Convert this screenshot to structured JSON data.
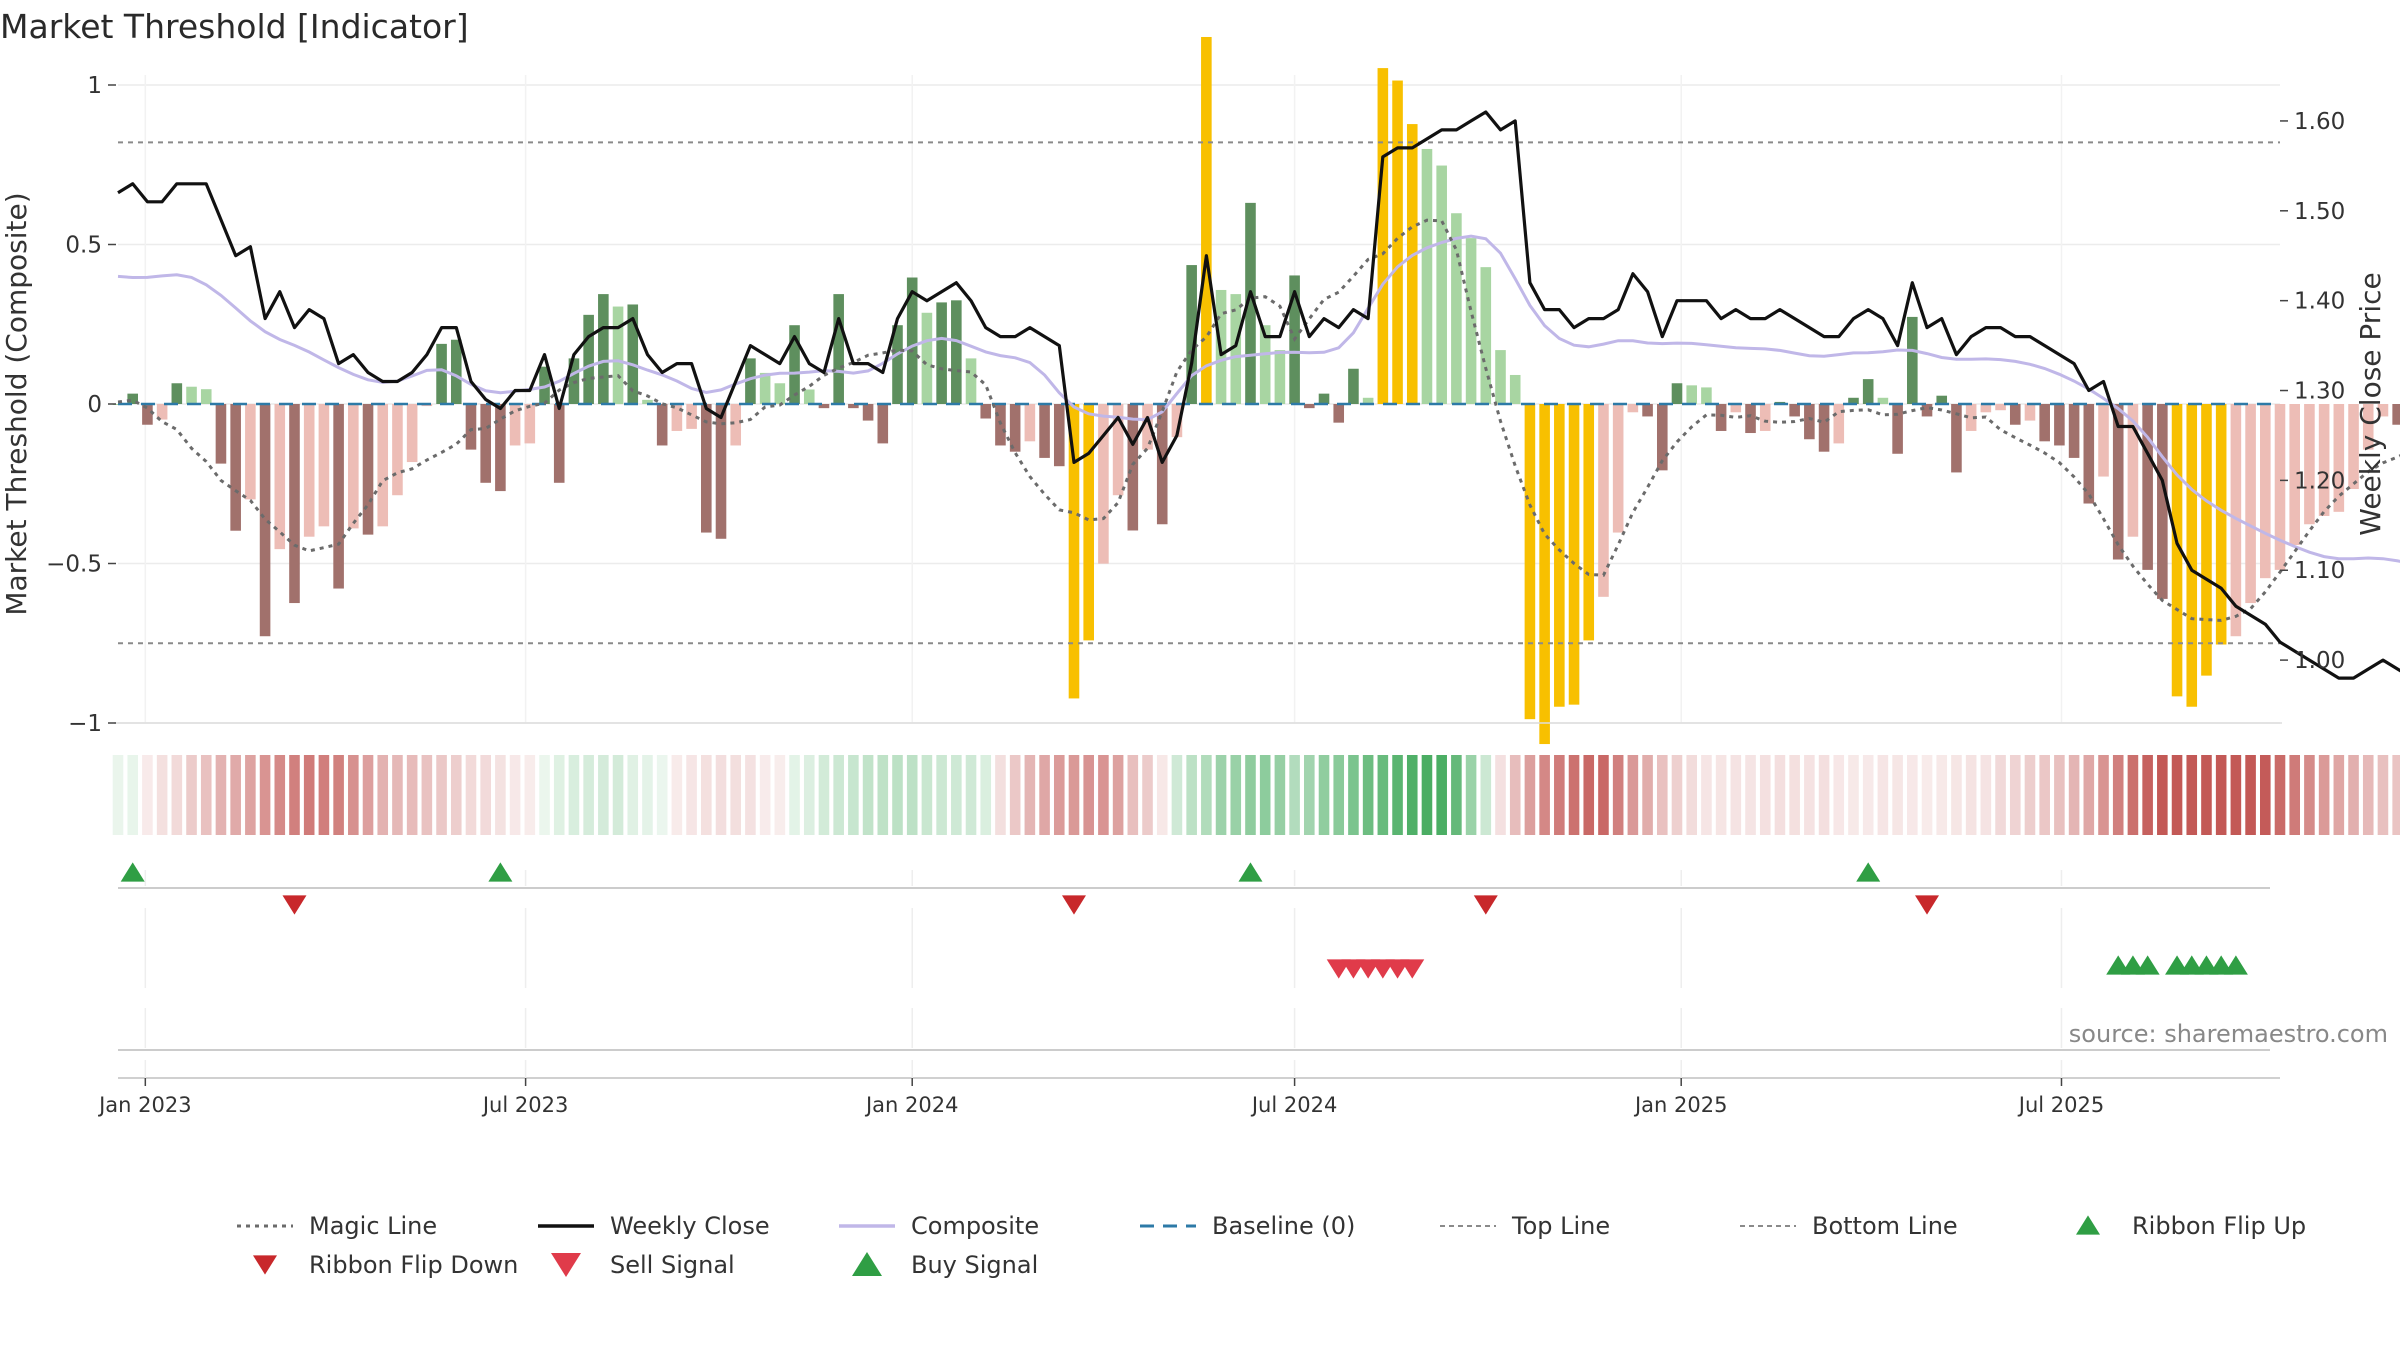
{
  "title": "Market Threshold [Indicator]",
  "source": "source: sharemaestro.com",
  "colors": {
    "bar_pos_strong": "#5e8f5e",
    "bar_pos_weak": "#a8d5a2",
    "bar_neg_strong": "#a1716c",
    "bar_neg_weak": "#edbdb6",
    "extreme": "#f8c000",
    "close": "#111111",
    "composite": "#c0b7e8",
    "magic": "#6b6b6b",
    "baseline": "#2d7aa7",
    "threshold": "#8a8a8a",
    "signal_up": "#2ca02c",
    "signal_down": "#d62728",
    "buy": "#2f9e44",
    "sell": "#e03b4a",
    "ribbon_flip_up": "#2f9e44",
    "ribbon_flip_down": "#c8282b"
  },
  "chart_data": {
    "type": "bar",
    "title": "Market Threshold [Indicator]",
    "x_range": [
      "2022-12-19",
      "2025-10-13"
    ],
    "x_ticks": [
      "Jan 2023",
      "Jul 2023",
      "Jan 2024",
      "Jul 2024",
      "Jan 2025",
      "Jul 2025"
    ],
    "left_axis": {
      "label": "Market Threshold (Composite)",
      "range": [
        -1,
        1
      ],
      "ticks": [
        {
          "v": 1,
          "label": "1"
        },
        {
          "v": 0.5,
          "label": "0.5"
        },
        {
          "v": 0,
          "label": "0"
        },
        {
          "v": -0.5,
          "label": "−0.5"
        },
        {
          "v": -1,
          "label": "−1"
        }
      ]
    },
    "right_axis": {
      "label": "Weekly Close Price",
      "range": [
        0.93,
        1.64
      ],
      "ticks": [
        1.6,
        1.5,
        1.4,
        1.3,
        1.2,
        1.1,
        1.0
      ]
    },
    "top_line": 0.82,
    "bottom_line": -0.75,
    "start_date": "2022-12-19",
    "weekly_close": [
      1.52,
      1.53,
      1.51,
      1.51,
      1.53,
      1.53,
      1.53,
      1.49,
      1.45,
      1.46,
      1.38,
      1.41,
      1.37,
      1.39,
      1.38,
      1.33,
      1.34,
      1.32,
      1.31,
      1.31,
      1.32,
      1.34,
      1.37,
      1.37,
      1.31,
      1.29,
      1.28,
      1.3,
      1.3,
      1.34,
      1.28,
      1.34,
      1.36,
      1.37,
      1.37,
      1.38,
      1.34,
      1.32,
      1.33,
      1.33,
      1.28,
      1.27,
      1.31,
      1.35,
      1.34,
      1.33,
      1.36,
      1.33,
      1.32,
      1.38,
      1.33,
      1.33,
      1.32,
      1.38,
      1.41,
      1.4,
      1.41,
      1.42,
      1.4,
      1.37,
      1.36,
      1.36,
      1.37,
      1.36,
      1.35,
      1.22,
      1.23,
      1.25,
      1.27,
      1.24,
      1.27,
      1.22,
      1.25,
      1.33,
      1.45,
      1.34,
      1.35,
      1.41,
      1.36,
      1.36,
      1.41,
      1.36,
      1.38,
      1.37,
      1.39,
      1.38,
      1.56,
      1.57,
      1.57,
      1.58,
      1.59,
      1.59,
      1.6,
      1.61,
      1.59,
      1.6,
      1.42,
      1.39,
      1.39,
      1.37,
      1.38,
      1.38,
      1.39,
      1.43,
      1.41,
      1.36,
      1.4,
      1.4,
      1.4,
      1.38,
      1.39,
      1.38,
      1.38,
      1.39,
      1.38,
      1.37,
      1.36,
      1.36,
      1.38,
      1.39,
      1.38,
      1.35,
      1.42,
      1.37,
      1.38,
      1.34,
      1.36,
      1.37,
      1.37,
      1.36,
      1.36,
      1.35,
      1.34,
      1.33,
      1.3,
      1.31,
      1.26,
      1.26,
      1.23,
      1.2,
      1.13,
      1.1,
      1.09,
      1.08,
      1.06,
      1.05,
      1.04,
      1.02,
      1.01,
      1.0,
      0.99,
      0.98,
      0.98,
      0.99,
      1.0,
      0.99,
      0.98,
      0.97,
      0.97,
      0.96,
      0.95,
      0.96,
      0.98
    ],
    "series": [
      {
        "name": "Composite",
        "type": "bar"
      },
      {
        "name": "Magic Line",
        "type": "line",
        "style": "dotted"
      },
      {
        "name": "Weekly Close",
        "type": "line",
        "axis": "right"
      },
      {
        "name": "Baseline (0)",
        "type": "line",
        "style": "dashed"
      },
      {
        "name": "Top Line",
        "type": "line",
        "style": "dotted"
      },
      {
        "name": "Bottom Line",
        "type": "line",
        "style": "dotted"
      }
    ],
    "ribbon_flip_up_dates": [
      "2022-12-26",
      "2023-06-19",
      "2024-06-10",
      "2025-03-31"
    ],
    "ribbon_flip_down_dates": [
      "2023-03-13",
      "2024-03-18",
      "2024-09-30",
      "2025-04-28"
    ],
    "sell_signal_dates": [
      "2024-07-22",
      "2024-07-29",
      "2024-08-05",
      "2024-08-12",
      "2024-08-19",
      "2024-08-26"
    ],
    "buy_signal_dates": [
      "2025-07-28",
      "2025-08-04",
      "2025-08-11",
      "2025-08-25",
      "2025-09-01",
      "2025-09-08",
      "2025-09-15",
      "2025-09-22"
    ]
  },
  "legend": [
    {
      "label": "Magic Line",
      "kind": "dotted",
      "color": "#6b6b6b"
    },
    {
      "label": "Weekly Close",
      "kind": "solid",
      "color": "#111111"
    },
    {
      "label": "Composite",
      "kind": "solid",
      "color": "#c0b7e8"
    },
    {
      "label": "Baseline (0)",
      "kind": "dashed",
      "color": "#2d7aa7"
    },
    {
      "label": "Top Line",
      "kind": "dotted-thin",
      "color": "#8a8a8a"
    },
    {
      "label": "Bottom Line",
      "kind": "dotted-thin",
      "color": "#8a8a8a"
    },
    {
      "label": "Ribbon Flip Up",
      "kind": "tri-up",
      "color": "#2f9e44"
    },
    {
      "label": "Ribbon Flip Down",
      "kind": "tri-down-small",
      "color": "#c8282b"
    },
    {
      "label": "Sell Signal",
      "kind": "tri-down",
      "color": "#e03b4a"
    },
    {
      "label": "Buy Signal",
      "kind": "tri-up-big",
      "color": "#2f9e44"
    }
  ]
}
